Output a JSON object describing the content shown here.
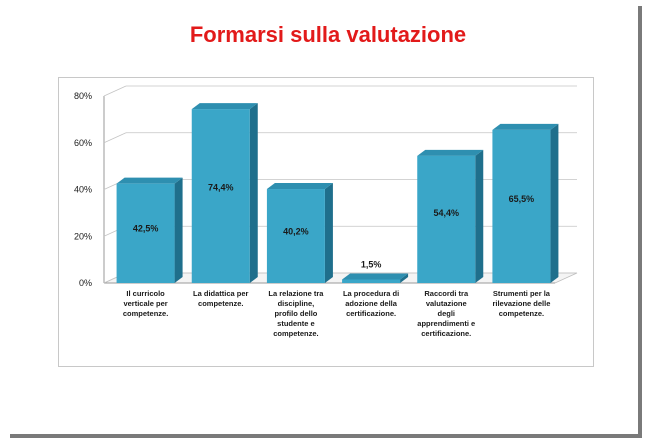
{
  "slide": {
    "title": "Formarsi sulla valutazione"
  },
  "chart_data": {
    "type": "bar",
    "title": "",
    "xlabel": "",
    "ylabel": "",
    "ylim": [
      0,
      80
    ],
    "yticks": [
      "0%",
      "20%",
      "40%",
      "60%",
      "80%"
    ],
    "grid": true,
    "categories": [
      [
        "Il curricolo",
        "verticale per",
        "competenze."
      ],
      [
        "La didattica per",
        "competenze."
      ],
      [
        "La relazione tra",
        "discipline,",
        "profilo dello",
        "studente e",
        "competenze."
      ],
      [
        "La procedura di",
        "adozione della",
        "certificazione."
      ],
      [
        "Raccordi tra",
        "valutazione",
        "degli",
        "apprendimenti e",
        "certificazione."
      ],
      [
        "Strumenti per la",
        "rilevazione delle",
        "competenze."
      ]
    ],
    "values": [
      42.5,
      74.4,
      40.2,
      1.5,
      54.4,
      65.5
    ],
    "value_labels": [
      "42,5%",
      "74,4%",
      "40,2%",
      "1,5%",
      "54,4%",
      "65,5%"
    ],
    "colors": {
      "bar_front": "#3aa6c8",
      "bar_side": "#1f6f8c",
      "bar_top": "#2e8fb0",
      "title": "#e21a1a"
    }
  }
}
